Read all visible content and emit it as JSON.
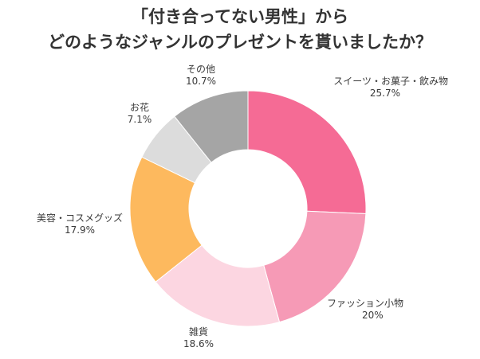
{
  "chart_data": {
    "type": "pie",
    "donut": true,
    "title": [
      "「付き合ってない男性」から",
      "どのようなジャンルのプレゼントを貰いましたか？"
    ],
    "slices": [
      {
        "label": "スイーツ・お菓子・飲み物",
        "value": 25.7,
        "value_label": "25.7%",
        "color": "#f56b95"
      },
      {
        "label": "ファッション小物",
        "value": 20,
        "value_label": "20%",
        "color": "#f69ab6"
      },
      {
        "label": "雑貨",
        "value": 18.6,
        "value_label": "18.6%",
        "color": "#fcd6e1"
      },
      {
        "label": "美容・コスメグッズ",
        "value": 17.9,
        "value_label": "17.9%",
        "color": "#fdb95e"
      },
      {
        "label": "お花",
        "value": 7.1,
        "value_label": "7.1%",
        "color": "#dcdcdc"
      },
      {
        "label": "その他",
        "value": 10.7,
        "value_label": "10.7%",
        "color": "#a5a5a5"
      }
    ],
    "start": "top",
    "direction": "clockwise"
  }
}
